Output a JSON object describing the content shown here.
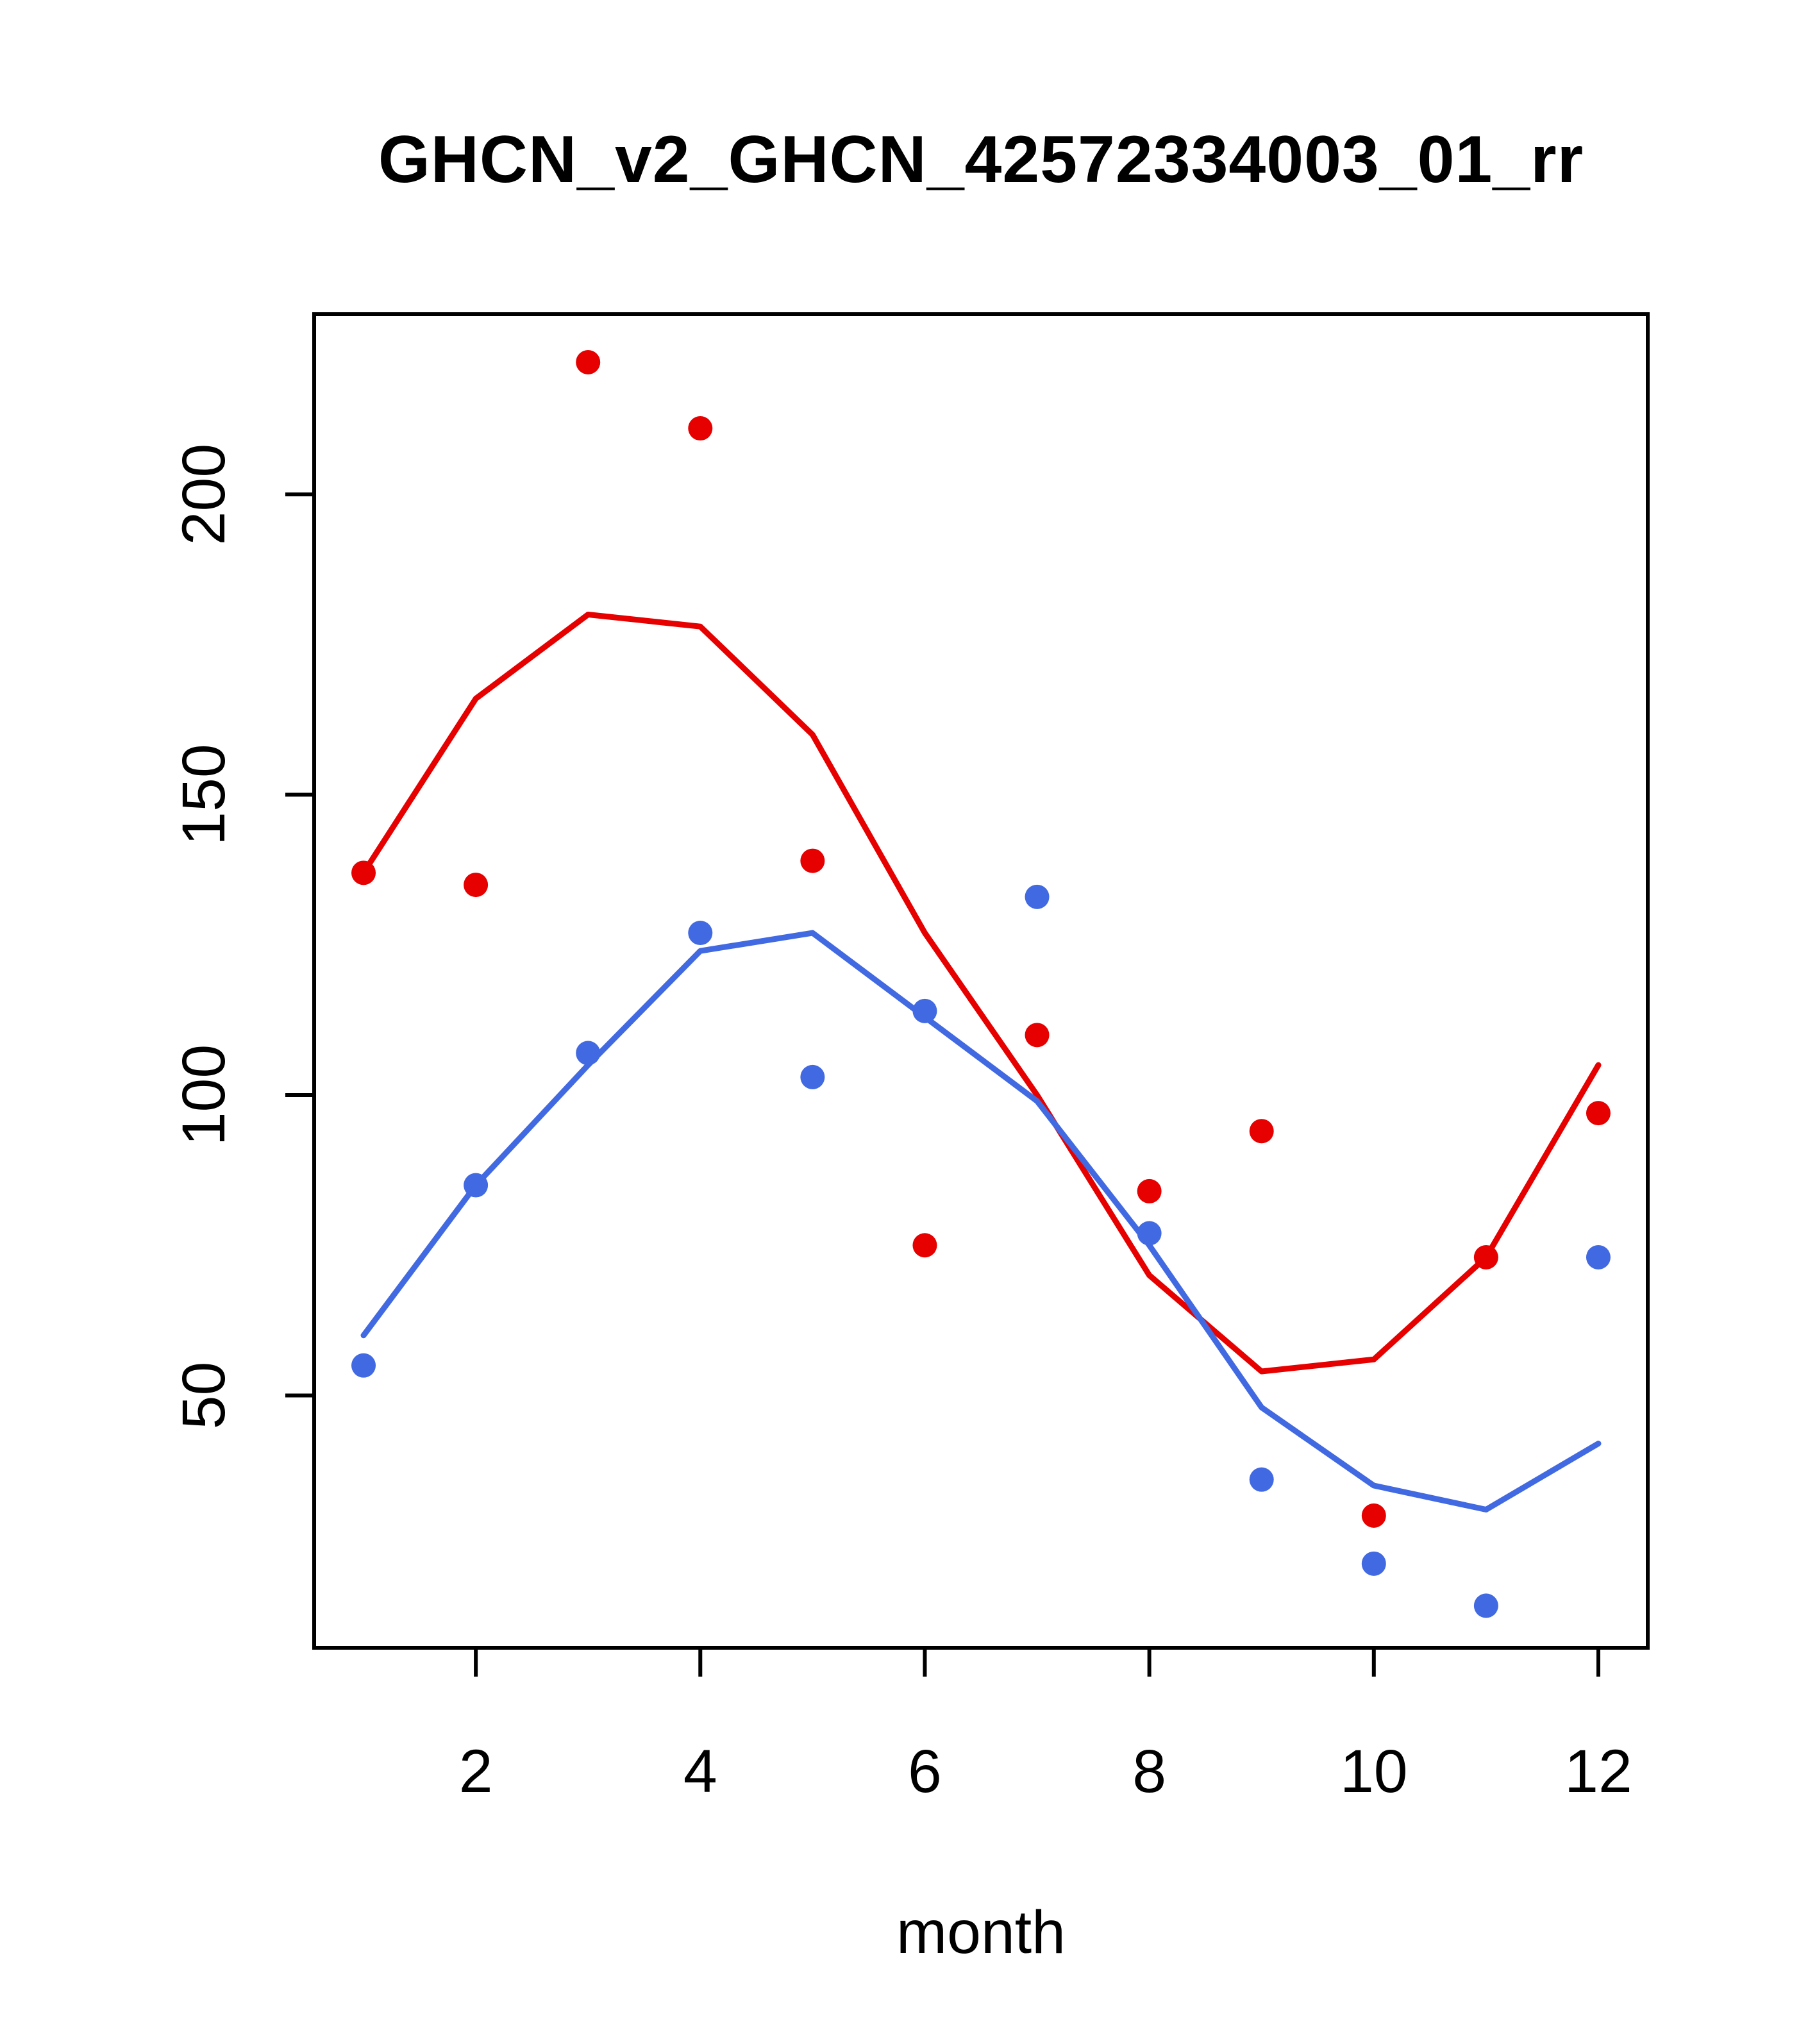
{
  "chart": {
    "title": "GHCN_v2_GHCN_42572334003_01_rr",
    "xlabel": "month"
  },
  "colors": {
    "red": "#e60000",
    "blue": "#4169e1",
    "axis": "#000000",
    "background": "#ffffff"
  },
  "chart_data": {
    "type": "line",
    "title": "GHCN_v2_GHCN_42572334003_01_rr",
    "xlabel": "month",
    "ylabel": "",
    "x": [
      1,
      2,
      3,
      4,
      5,
      6,
      7,
      8,
      9,
      10,
      11,
      12
    ],
    "xticks": [
      2,
      4,
      6,
      8,
      10,
      12
    ],
    "yticks": [
      50,
      100,
      150,
      200
    ],
    "xlim": [
      0.56,
      12.44
    ],
    "ylim": [
      8,
      230
    ],
    "grid": false,
    "legend": "none",
    "series": [
      {
        "name": "red-line",
        "kind": "line",
        "color": "#e60000",
        "values": [
          137,
          166,
          180,
          178,
          160,
          127,
          100,
          70,
          54,
          56,
          73,
          105
        ]
      },
      {
        "name": "blue-line",
        "kind": "line",
        "color": "#4169e1",
        "values": [
          60,
          85,
          105,
          124,
          127,
          113,
          99,
          75,
          48,
          35,
          31,
          42
        ]
      },
      {
        "name": "red-points",
        "kind": "points",
        "color": "#e60000",
        "values": [
          137,
          135,
          222,
          211,
          139,
          75,
          110,
          84,
          94,
          30,
          73,
          97
        ]
      },
      {
        "name": "blue-points",
        "kind": "points",
        "color": "#4169e1",
        "values": [
          55,
          85,
          107,
          127,
          103,
          114,
          133,
          77,
          36,
          22,
          15,
          73
        ]
      }
    ]
  }
}
